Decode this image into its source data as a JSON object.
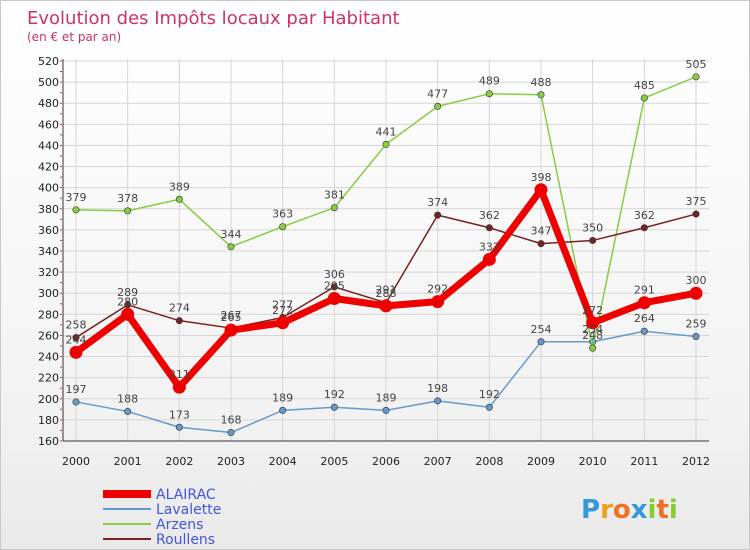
{
  "chart_data": {
    "type": "line",
    "title": "Evolution des Impôts locaux par Habitant",
    "subtitle": "(en € et par an)",
    "xlabel": "",
    "ylabel": "",
    "ylim": [
      160,
      520
    ],
    "yticks": [
      160,
      180,
      200,
      220,
      240,
      260,
      280,
      300,
      320,
      340,
      360,
      380,
      400,
      420,
      440,
      460,
      480,
      500,
      520
    ],
    "categories": [
      "2000",
      "2001",
      "2002",
      "2003",
      "2004",
      "2005",
      "2006",
      "2007",
      "2008",
      "2009",
      "2010",
      "2011",
      "2012"
    ],
    "series": [
      {
        "name": "ALAIRAC",
        "color": "#ee0000",
        "values": [
          244,
          280,
          211,
          265,
          272,
          295,
          288,
          292,
          332,
          398,
          272,
          291,
          300
        ]
      },
      {
        "name": "Lavalette",
        "color": "#6699cc",
        "values": [
          197,
          188,
          173,
          168,
          189,
          192,
          189,
          198,
          192,
          254,
          254,
          264,
          259
        ]
      },
      {
        "name": "Arzens",
        "color": "#88cc44",
        "values": [
          379,
          378,
          389,
          344,
          363,
          381,
          441,
          477,
          489,
          488,
          248,
          485,
          505
        ]
      },
      {
        "name": "Roullens",
        "color": "#772222",
        "values": [
          258,
          289,
          274,
          267,
          277,
          306,
          291,
          374,
          362,
          347,
          350,
          362,
          375
        ]
      }
    ]
  },
  "logo": {
    "text": "Proxiti",
    "letters": [
      "P",
      "r",
      "o",
      "x",
      "i",
      "t",
      "i"
    ]
  }
}
